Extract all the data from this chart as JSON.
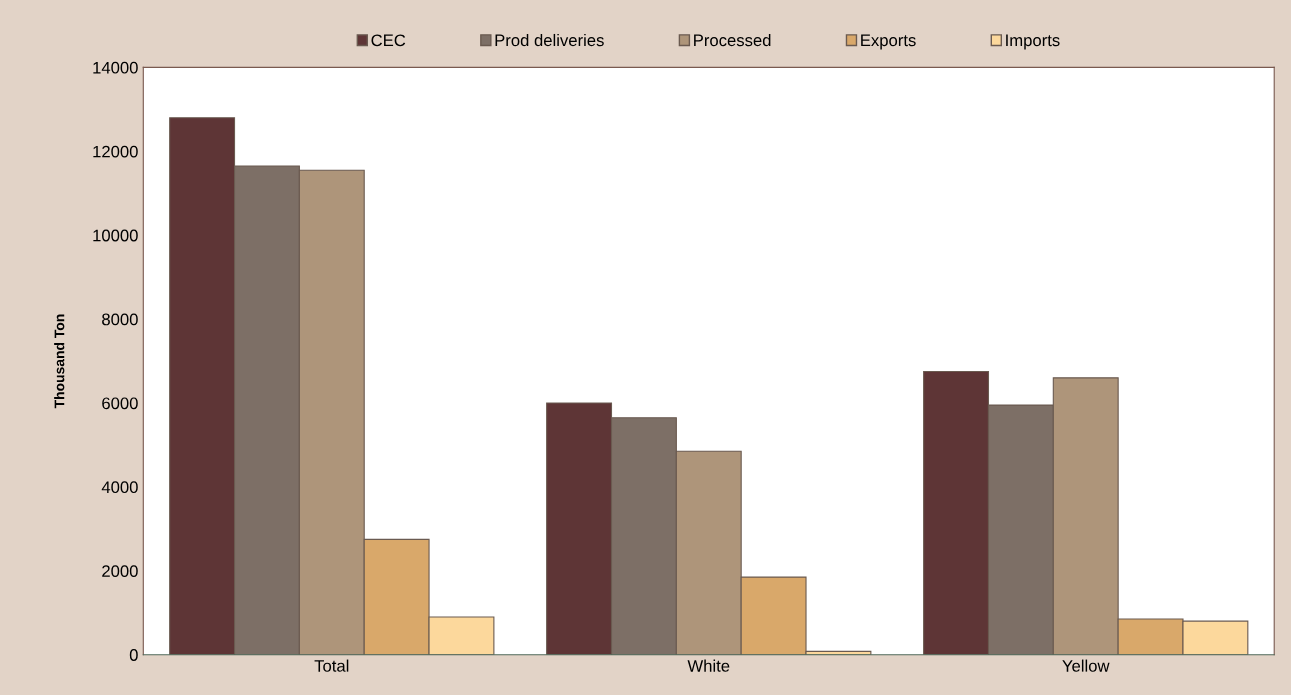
{
  "chart_data": {
    "type": "bar",
    "ylabel": "Thousand Ton",
    "categories": [
      "Total",
      "White",
      "Yellow"
    ],
    "series": [
      {
        "name": "CEC",
        "color": "#5e3536",
        "values": [
          12800,
          6000,
          6750
        ]
      },
      {
        "name": "Prod deliveries",
        "color": "#7d6f66",
        "values": [
          11650,
          5650,
          5950
        ]
      },
      {
        "name": "Processed",
        "color": "#ae957a",
        "values": [
          11550,
          4850,
          6600
        ]
      },
      {
        "name": "Exports",
        "color": "#d9a86a",
        "values": [
          2750,
          1850,
          850
        ]
      },
      {
        "name": "Imports",
        "color": "#fcd89c",
        "values": [
          900,
          80,
          800
        ]
      }
    ],
    "ylim": [
      0,
      14000
    ],
    "yticks": [
      0,
      2000,
      4000,
      6000,
      8000,
      10000,
      12000,
      14000
    ],
    "grid": false,
    "legend": "top"
  }
}
